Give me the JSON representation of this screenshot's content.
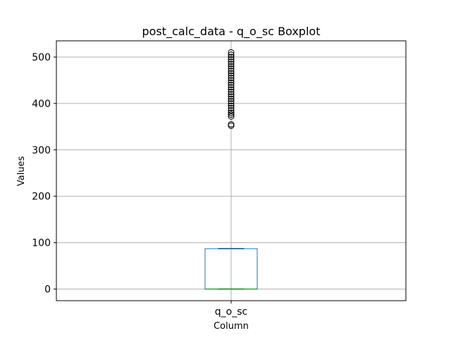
{
  "chart_data": {
    "type": "boxplot",
    "title": "post_calc_data - q_o_sc Boxplot",
    "xlabel": "Column",
    "ylabel": "Values",
    "categories": [
      "q_o_sc"
    ],
    "ylim": [
      -25,
      535
    ],
    "yticks": [
      0,
      100,
      200,
      300,
      400,
      500
    ],
    "grid": true,
    "boxes": [
      {
        "category": "q_o_sc",
        "whisker_low": 0,
        "q1": 0,
        "median": 0,
        "q3": 87,
        "whisker_high": 87,
        "outliers": [
          352,
          355,
          372,
          376,
          380,
          385,
          390,
          395,
          400,
          405,
          410,
          415,
          420,
          425,
          430,
          435,
          440,
          445,
          450,
          455,
          460,
          465,
          470,
          475,
          480,
          485,
          490,
          495,
          500,
          505,
          510
        ]
      }
    ],
    "colors": {
      "box": "#1f77b4",
      "median": "#2ca02c",
      "whisker": "#000000",
      "grid": "#b0b0b0",
      "outlier": "#000000"
    }
  }
}
